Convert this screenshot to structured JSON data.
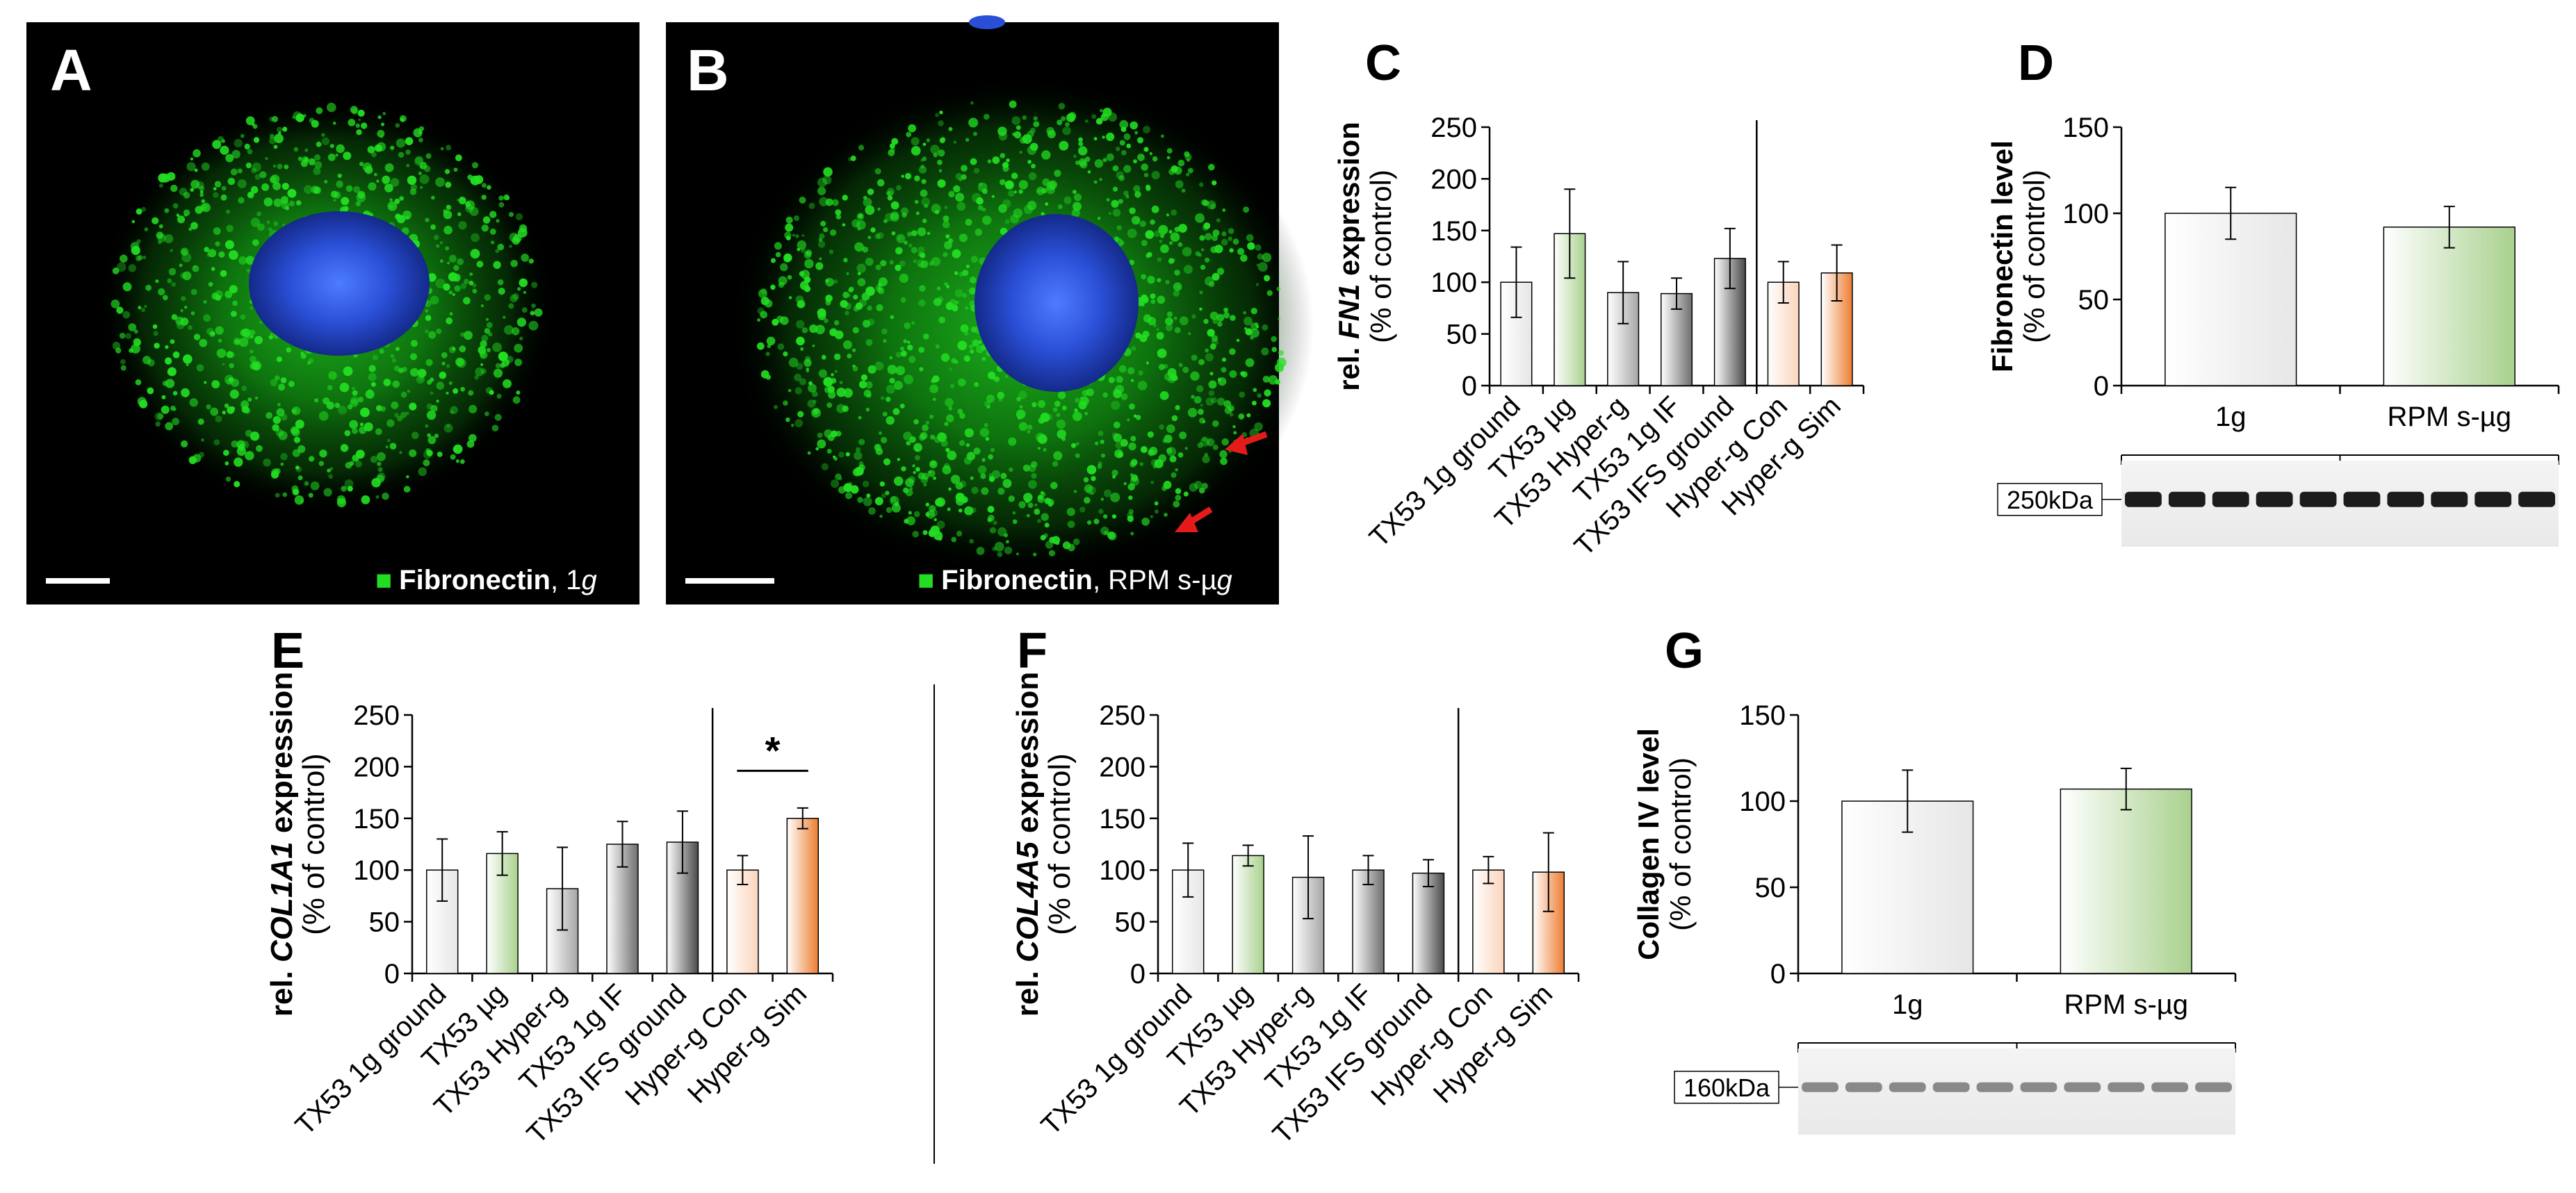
{
  "colors": {
    "fibronectin": "#22dd22",
    "nucleus": "#2a4fd6",
    "arrow": "#e51b1b",
    "bar_outline": "#000000",
    "gray_light": "#e6e6e6",
    "gray_mid": "#a6a6a6",
    "gray_dark": "#6e6e6e",
    "gray_darkest": "#4a4a4a",
    "green": "#a9d18e",
    "peach": "#fbd4bb",
    "orange": "#ed7d31"
  },
  "micrographs": {
    "a": {
      "panel": "A",
      "marker": "■",
      "label_bold": "Fibronectin",
      "label_rest": ", 1",
      "label_italic": "g",
      "scale_bar": "scale-bar"
    },
    "b": {
      "panel": "B",
      "marker": "■",
      "label_bold": "Fibronectin",
      "label_rest": ", RPM s-µ",
      "label_italic": "g",
      "scale_bar": "scale-bar",
      "arrows": [
        "red-arrow",
        "red-arrow"
      ]
    }
  },
  "chart_data": [
    {
      "panel": "C",
      "type": "bar",
      "ylabel_prefix": "rel. ",
      "ylabel_gene": "FN1",
      "ylabel_suffix": " expression",
      "ylabel_line2": "(% of control)",
      "ylim": [
        0,
        250
      ],
      "yticks": [
        "0",
        "50",
        "100",
        "150",
        "200",
        "250"
      ],
      "categories": [
        "TX53 1g ground",
        "TX53 µg",
        "TX53 Hyper-g",
        "TX53 1g IF",
        "TX53 IFS ground",
        "Hyper-g Con",
        "Hyper-g Sim"
      ],
      "values": [
        100,
        147,
        90,
        89,
        123,
        100,
        109
      ],
      "errors": [
        34,
        43,
        30,
        15,
        29,
        20,
        27
      ],
      "colors": [
        "gray_light",
        "green",
        "gray_mid",
        "gray_dark",
        "gray_darkest",
        "peach",
        "orange"
      ],
      "separator_after": 5,
      "significance": null
    },
    {
      "panel": "D",
      "type": "bar",
      "ylabel": "Fibronectin level",
      "ylabel_line2": "(% of control)",
      "ylim": [
        0,
        150
      ],
      "yticks": [
        "0",
        "50",
        "100",
        "150"
      ],
      "categories": [
        "1g",
        "RPM s-µg"
      ],
      "values": [
        100,
        92
      ],
      "errors": [
        15,
        12
      ],
      "colors": [
        "gray_light",
        "green"
      ],
      "blot": {
        "marker": "250kDa",
        "bands": 10,
        "groups": [
          "1g",
          "RPM s-µg"
        ]
      }
    },
    {
      "panel": "E",
      "type": "bar",
      "ylabel_prefix": "rel. ",
      "ylabel_gene": "COL1A1",
      "ylabel_suffix": " expression",
      "ylabel_line2": "(% of control)",
      "ylim": [
        0,
        250
      ],
      "yticks": [
        "0",
        "50",
        "100",
        "150",
        "200",
        "250"
      ],
      "categories": [
        "TX53 1g ground",
        "TX53 µg",
        "TX53 Hyper-g",
        "TX53 1g IF",
        "TX53 IFS ground",
        "Hyper-g Con",
        "Hyper-g Sim"
      ],
      "values": [
        100,
        116,
        82,
        125,
        127,
        100,
        150
      ],
      "errors": [
        30,
        21,
        40,
        22,
        30,
        14,
        10
      ],
      "colors": [
        "gray_light",
        "green",
        "gray_mid",
        "gray_dark",
        "gray_darkest",
        "peach",
        "orange"
      ],
      "separator_after": 5,
      "significance": {
        "from": 5,
        "to": 6,
        "label": "*",
        "y": 196
      }
    },
    {
      "panel": "F",
      "type": "bar",
      "ylabel_prefix": "rel. ",
      "ylabel_gene": "COL4A5",
      "ylabel_suffix": " expression",
      "ylabel_line2": "(% of control)",
      "ylim": [
        0,
        250
      ],
      "yticks": [
        "0",
        "50",
        "100",
        "150",
        "200",
        "250"
      ],
      "categories": [
        "TX53 1g ground",
        "TX53 µg",
        "TX53 Hyper-g",
        "TX53 1g IF",
        "TX53 IFS ground",
        "Hyper-g Con",
        "Hyper-g Sim"
      ],
      "values": [
        100,
        114,
        93,
        100,
        97,
        100,
        98
      ],
      "errors": [
        26,
        10,
        40,
        14,
        13,
        13,
        38
      ],
      "colors": [
        "gray_light",
        "green",
        "gray_mid",
        "gray_dark",
        "gray_darkest",
        "peach",
        "orange"
      ],
      "separator_after": 5,
      "significance": null
    },
    {
      "panel": "G",
      "type": "bar",
      "ylabel": "Collagen IV level",
      "ylabel_line2": "(% of control)",
      "ylim": [
        0,
        150
      ],
      "yticks": [
        "0",
        "50",
        "100",
        "150"
      ],
      "categories": [
        "1g",
        "RPM s-µg"
      ],
      "values": [
        100,
        107
      ],
      "errors": [
        18,
        12
      ],
      "colors": [
        "gray_light",
        "green"
      ],
      "blot": {
        "marker": "160kDa",
        "bands": 10,
        "groups": [
          "1g",
          "RPM s-µg"
        ]
      }
    }
  ]
}
